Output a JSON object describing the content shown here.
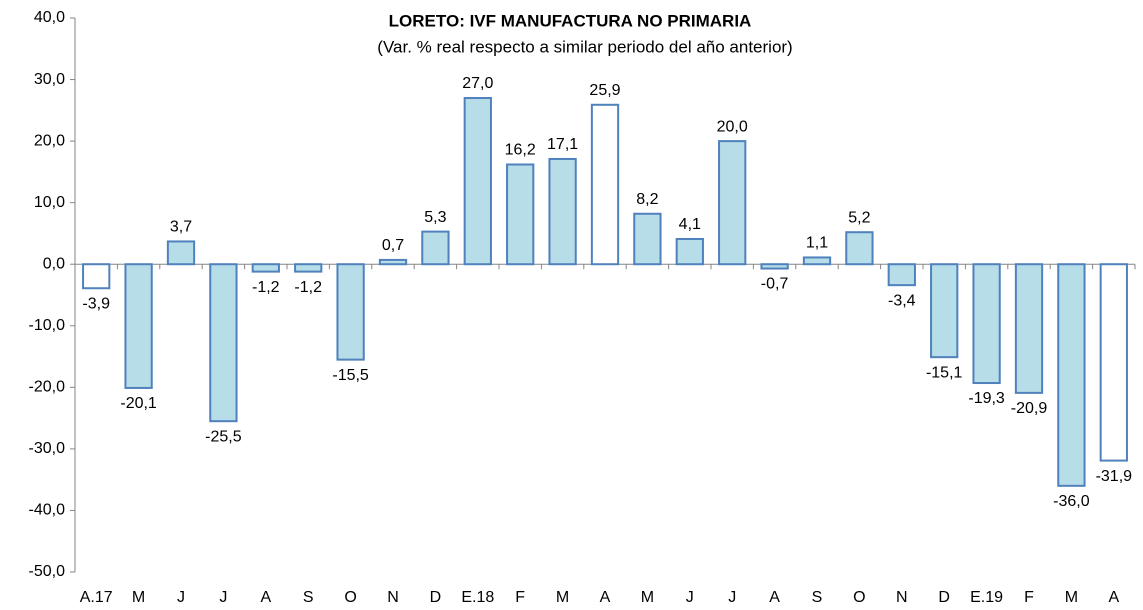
{
  "chart_data": {
    "type": "bar",
    "title": "LORETO: IVF MANUFACTURA NO PRIMARIA",
    "subtitle": "(Var. % real respecto a similar periodo del año anterior)",
    "categories": [
      "A.17",
      "M",
      "J",
      "J",
      "A",
      "S",
      "O",
      "N",
      "D",
      "E.18",
      "F",
      "M",
      "A",
      "M",
      "J",
      "J",
      "A",
      "S",
      "O",
      "N",
      "D",
      "E.19",
      "F",
      "M",
      "A"
    ],
    "values": [
      -3.9,
      -20.1,
      3.7,
      -25.5,
      -1.2,
      -1.2,
      -15.5,
      0.7,
      5.3,
      27.0,
      16.2,
      17.1,
      25.9,
      8.2,
      4.1,
      20.0,
      -0.7,
      1.1,
      5.2,
      -3.4,
      -15.1,
      -19.3,
      -20.9,
      -36.0,
      -31.9
    ],
    "value_labels": [
      "-3,9",
      "-20,1",
      "3,7",
      "-25,5",
      "-1,2",
      "-1,2",
      "-15,5",
      "0,7",
      "5,3",
      "27,0",
      "16,2",
      "17,1",
      "25,9",
      "8,2",
      "4,1",
      "20,0",
      "-0,7",
      "1,1",
      "5,2",
      "-3,4",
      "-15,1",
      "-19,3",
      "-20,9",
      "-36,0",
      "-31,9"
    ],
    "colors": [
      "#ffffff",
      "#b7dde8",
      "#b7dde8",
      "#b7dde8",
      "#b7dde8",
      "#b7dde8",
      "#b7dde8",
      "#b7dde8",
      "#b7dde8",
      "#b7dde8",
      "#b7dde8",
      "#b7dde8",
      "#ffffff",
      "#b7dde8",
      "#b7dde8",
      "#b7dde8",
      "#b7dde8",
      "#b7dde8",
      "#b7dde8",
      "#b7dde8",
      "#b7dde8",
      "#b7dde8",
      "#b7dde8",
      "#b7dde8",
      "#ffffff"
    ],
    "border_color": "#4f81bd",
    "ylim": [
      -50,
      40
    ],
    "yticks": [
      {
        "value": 40,
        "label": "40,0"
      },
      {
        "value": 30,
        "label": "30,0"
      },
      {
        "value": 20,
        "label": "20,0"
      },
      {
        "value": 10,
        "label": "10,0"
      },
      {
        "value": 0,
        "label": "0,0"
      },
      {
        "value": -10,
        "label": "-10,0"
      },
      {
        "value": -20,
        "label": "-20,0"
      },
      {
        "value": -30,
        "label": "-30,0"
      },
      {
        "value": -40,
        "label": "-40,0"
      },
      {
        "value": -50,
        "label": "-50,0"
      }
    ]
  }
}
